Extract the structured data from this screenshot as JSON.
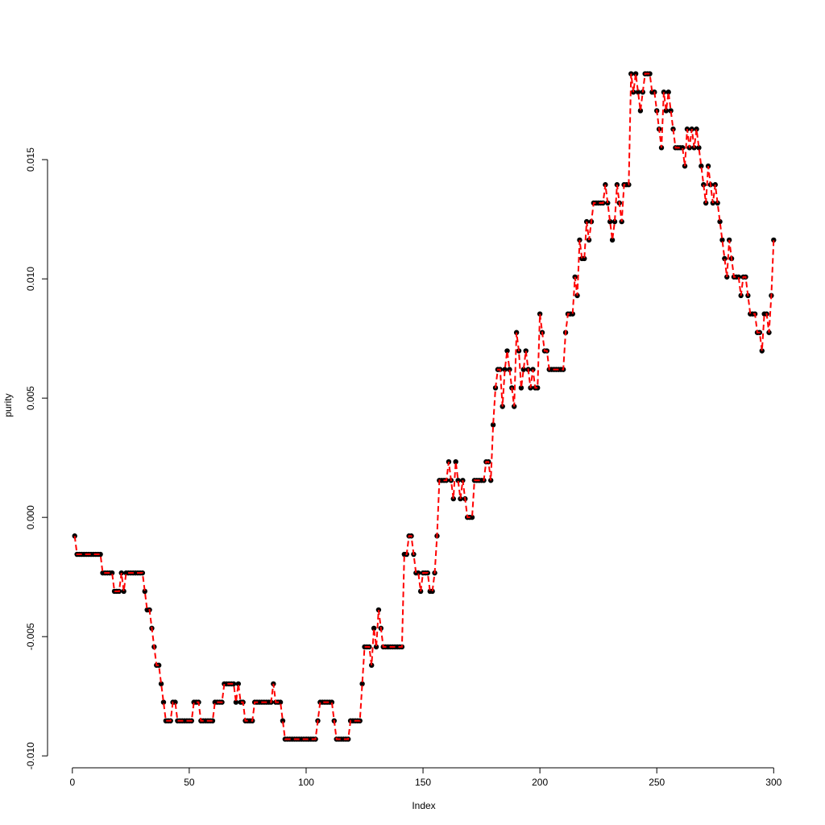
{
  "chart_data": {
    "type": "line",
    "x_label": "Index",
    "y_label": "purity",
    "xlim": [
      -10.96,
      311.96
    ],
    "ylim": [
      -0.0105,
      0.0197
    ],
    "xticks": [
      0,
      50,
      100,
      150,
      200,
      250,
      300
    ],
    "yticks": [
      {
        "value": -0.01,
        "label": "-0.010"
      },
      {
        "value": -0.005,
        "label": "-0.005"
      },
      {
        "value": 0,
        "label": "0.000"
      },
      {
        "value": 0.005,
        "label": "0.005"
      },
      {
        "value": 0.01,
        "label": "0.010"
      },
      {
        "value": 0.015,
        "label": "0.015"
      }
    ],
    "line_color": "#ff0000",
    "point_color": "#000000",
    "x": [
      1,
      2,
      3,
      4,
      5,
      6,
      7,
      8,
      9,
      10,
      11,
      12,
      13,
      14,
      15,
      16,
      17,
      18,
      19,
      20,
      21,
      22,
      23,
      24,
      25,
      26,
      27,
      28,
      29,
      30,
      31,
      32,
      33,
      34,
      35,
      36,
      37,
      38,
      39,
      40,
      41,
      42,
      43,
      44,
      45,
      46,
      47,
      48,
      49,
      50,
      51,
      52,
      53,
      54,
      55,
      56,
      57,
      58,
      59,
      60,
      61,
      62,
      63,
      64,
      65,
      66,
      67,
      68,
      69,
      70,
      71,
      72,
      73,
      74,
      75,
      76,
      77,
      78,
      79,
      80,
      81,
      82,
      83,
      84,
      85,
      86,
      87,
      88,
      89,
      90,
      91,
      92,
      93,
      94,
      95,
      96,
      97,
      98,
      99,
      100,
      101,
      102,
      103,
      104,
      105,
      106,
      107,
      108,
      109,
      110,
      111,
      112,
      113,
      114,
      115,
      116,
      117,
      118,
      119,
      120,
      121,
      122,
      123,
      124,
      125,
      126,
      127,
      128,
      129,
      130,
      131,
      132,
      133,
      134,
      135,
      136,
      137,
      138,
      139,
      140,
      141,
      142,
      143,
      144,
      145,
      146,
      147,
      148,
      149,
      150,
      151,
      152,
      153,
      154,
      155,
      156,
      157,
      158,
      159,
      160,
      161,
      162,
      163,
      164,
      165,
      166,
      167,
      168,
      169,
      170,
      171,
      172,
      173,
      174,
      175,
      176,
      177,
      178,
      179,
      180,
      181,
      182,
      183,
      184,
      185,
      186,
      187,
      188,
      189,
      190,
      191,
      192,
      193,
      194,
      195,
      196,
      197,
      198,
      199,
      200,
      201,
      202,
      203,
      204,
      205,
      206,
      207,
      208,
      209,
      210,
      211,
      212,
      213,
      214,
      215,
      216,
      217,
      218,
      219,
      220,
      221,
      222,
      223,
      224,
      225,
      226,
      227,
      228,
      229,
      230,
      231,
      232,
      233,
      234,
      235,
      236,
      237,
      238,
      239,
      240,
      241,
      242,
      243,
      244,
      245,
      246,
      247,
      248,
      249,
      250,
      251,
      252,
      253,
      254,
      255,
      256,
      257,
      258,
      259,
      260,
      261,
      262,
      263,
      264,
      265,
      266,
      267,
      268,
      269,
      270,
      271,
      272,
      273,
      274,
      275,
      276,
      277,
      278,
      279,
      280,
      281,
      282,
      283,
      284,
      285,
      286,
      287,
      288,
      289,
      290,
      291,
      292,
      293,
      294,
      295,
      296,
      297,
      298,
      299,
      300
    ],
    "values": [
      -0.00078,
      -0.00155,
      -0.00155,
      -0.00155,
      -0.00155,
      -0.00155,
      -0.00155,
      -0.00155,
      -0.00155,
      -0.00155,
      -0.00155,
      -0.00155,
      -0.00233,
      -0.00233,
      -0.00233,
      -0.00233,
      -0.00233,
      -0.0031,
      -0.0031,
      -0.0031,
      -0.00233,
      -0.0031,
      -0.00233,
      -0.00233,
      -0.00233,
      -0.00233,
      -0.00233,
      -0.00233,
      -0.00233,
      -0.00233,
      -0.0031,
      -0.00388,
      -0.00388,
      -0.00465,
      -0.00543,
      -0.0062,
      -0.0062,
      -0.00698,
      -0.00775,
      -0.00853,
      -0.00853,
      -0.00853,
      -0.00775,
      -0.00775,
      -0.00853,
      -0.00853,
      -0.00853,
      -0.00853,
      -0.00853,
      -0.00853,
      -0.00853,
      -0.00775,
      -0.00775,
      -0.00775,
      -0.00853,
      -0.00853,
      -0.00853,
      -0.00853,
      -0.00853,
      -0.00853,
      -0.00775,
      -0.00775,
      -0.00775,
      -0.00775,
      -0.00698,
      -0.00698,
      -0.00698,
      -0.00698,
      -0.00698,
      -0.00775,
      -0.00698,
      -0.00775,
      -0.00775,
      -0.00853,
      -0.00853,
      -0.00853,
      -0.00853,
      -0.00775,
      -0.00775,
      -0.00775,
      -0.00775,
      -0.00775,
      -0.00775,
      -0.00775,
      -0.00775,
      -0.00698,
      -0.00775,
      -0.00775,
      -0.00775,
      -0.00853,
      -0.0093,
      -0.0093,
      -0.0093,
      -0.0093,
      -0.0093,
      -0.0093,
      -0.0093,
      -0.0093,
      -0.0093,
      -0.0093,
      -0.0093,
      -0.0093,
      -0.0093,
      -0.0093,
      -0.00853,
      -0.00775,
      -0.00775,
      -0.00775,
      -0.00775,
      -0.00775,
      -0.00775,
      -0.00853,
      -0.0093,
      -0.0093,
      -0.0093,
      -0.0093,
      -0.0093,
      -0.0093,
      -0.00853,
      -0.00853,
      -0.00853,
      -0.00853,
      -0.00853,
      -0.00698,
      -0.00543,
      -0.00543,
      -0.00543,
      -0.0062,
      -0.00465,
      -0.00543,
      -0.00388,
      -0.00465,
      -0.00543,
      -0.00543,
      -0.00543,
      -0.00543,
      -0.00543,
      -0.00543,
      -0.00543,
      -0.00543,
      -0.00543,
      -0.00155,
      -0.00155,
      -0.00078,
      -0.00078,
      -0.00155,
      -0.00233,
      -0.00233,
      -0.0031,
      -0.00233,
      -0.00233,
      -0.00233,
      -0.0031,
      -0.0031,
      -0.00233,
      -0.00078,
      0.00155,
      0.00155,
      0.00155,
      0.00155,
      0.00233,
      0.00155,
      0.00078,
      0.00233,
      0.00155,
      0.00078,
      0.00155,
      0.00078,
      0,
      0,
      0,
      0.00155,
      0.00155,
      0.00155,
      0.00155,
      0.00155,
      0.00233,
      0.00233,
      0.00155,
      0.00388,
      0.00543,
      0.0062,
      0.0062,
      0.00465,
      0.0062,
      0.00698,
      0.0062,
      0.00543,
      0.00465,
      0.00775,
      0.00698,
      0.00543,
      0.0062,
      0.00698,
      0.0062,
      0.00543,
      0.0062,
      0.00543,
      0.00543,
      0.00853,
      0.00775,
      0.00698,
      0.00698,
      0.0062,
      0.0062,
      0.0062,
      0.0062,
      0.0062,
      0.0062,
      0.0062,
      0.00775,
      0.00853,
      0.00853,
      0.00853,
      0.01008,
      0.0093,
      0.01163,
      0.01085,
      0.01085,
      0.0124,
      0.01163,
      0.0124,
      0.01318,
      0.01318,
      0.01318,
      0.01318,
      0.01318,
      0.01395,
      0.01318,
      0.0124,
      0.01163,
      0.0124,
      0.01395,
      0.01318,
      0.0124,
      0.01395,
      0.01395,
      0.01395,
      0.0186,
      0.01783,
      0.0186,
      0.01783,
      0.01705,
      0.01783,
      0.0186,
      0.0186,
      0.0186,
      0.01783,
      0.01783,
      0.01705,
      0.01628,
      0.0155,
      0.01783,
      0.01705,
      0.01783,
      0.01705,
      0.01628,
      0.0155,
      0.0155,
      0.0155,
      0.0155,
      0.01473,
      0.01628,
      0.0155,
      0.01628,
      0.0155,
      0.01628,
      0.0155,
      0.01473,
      0.01395,
      0.01318,
      0.01473,
      0.01395,
      0.01318,
      0.01395,
      0.01318,
      0.0124,
      0.01163,
      0.01085,
      0.01008,
      0.01163,
      0.01085,
      0.01008,
      0.01008,
      0.01008,
      0.0093,
      0.01008,
      0.01008,
      0.0093,
      0.00853,
      0.00853,
      0.00853,
      0.00775,
      0.00775,
      0.00698,
      0.00853,
      0.00853,
      0.00775,
      0.0093,
      0.01163
    ]
  }
}
